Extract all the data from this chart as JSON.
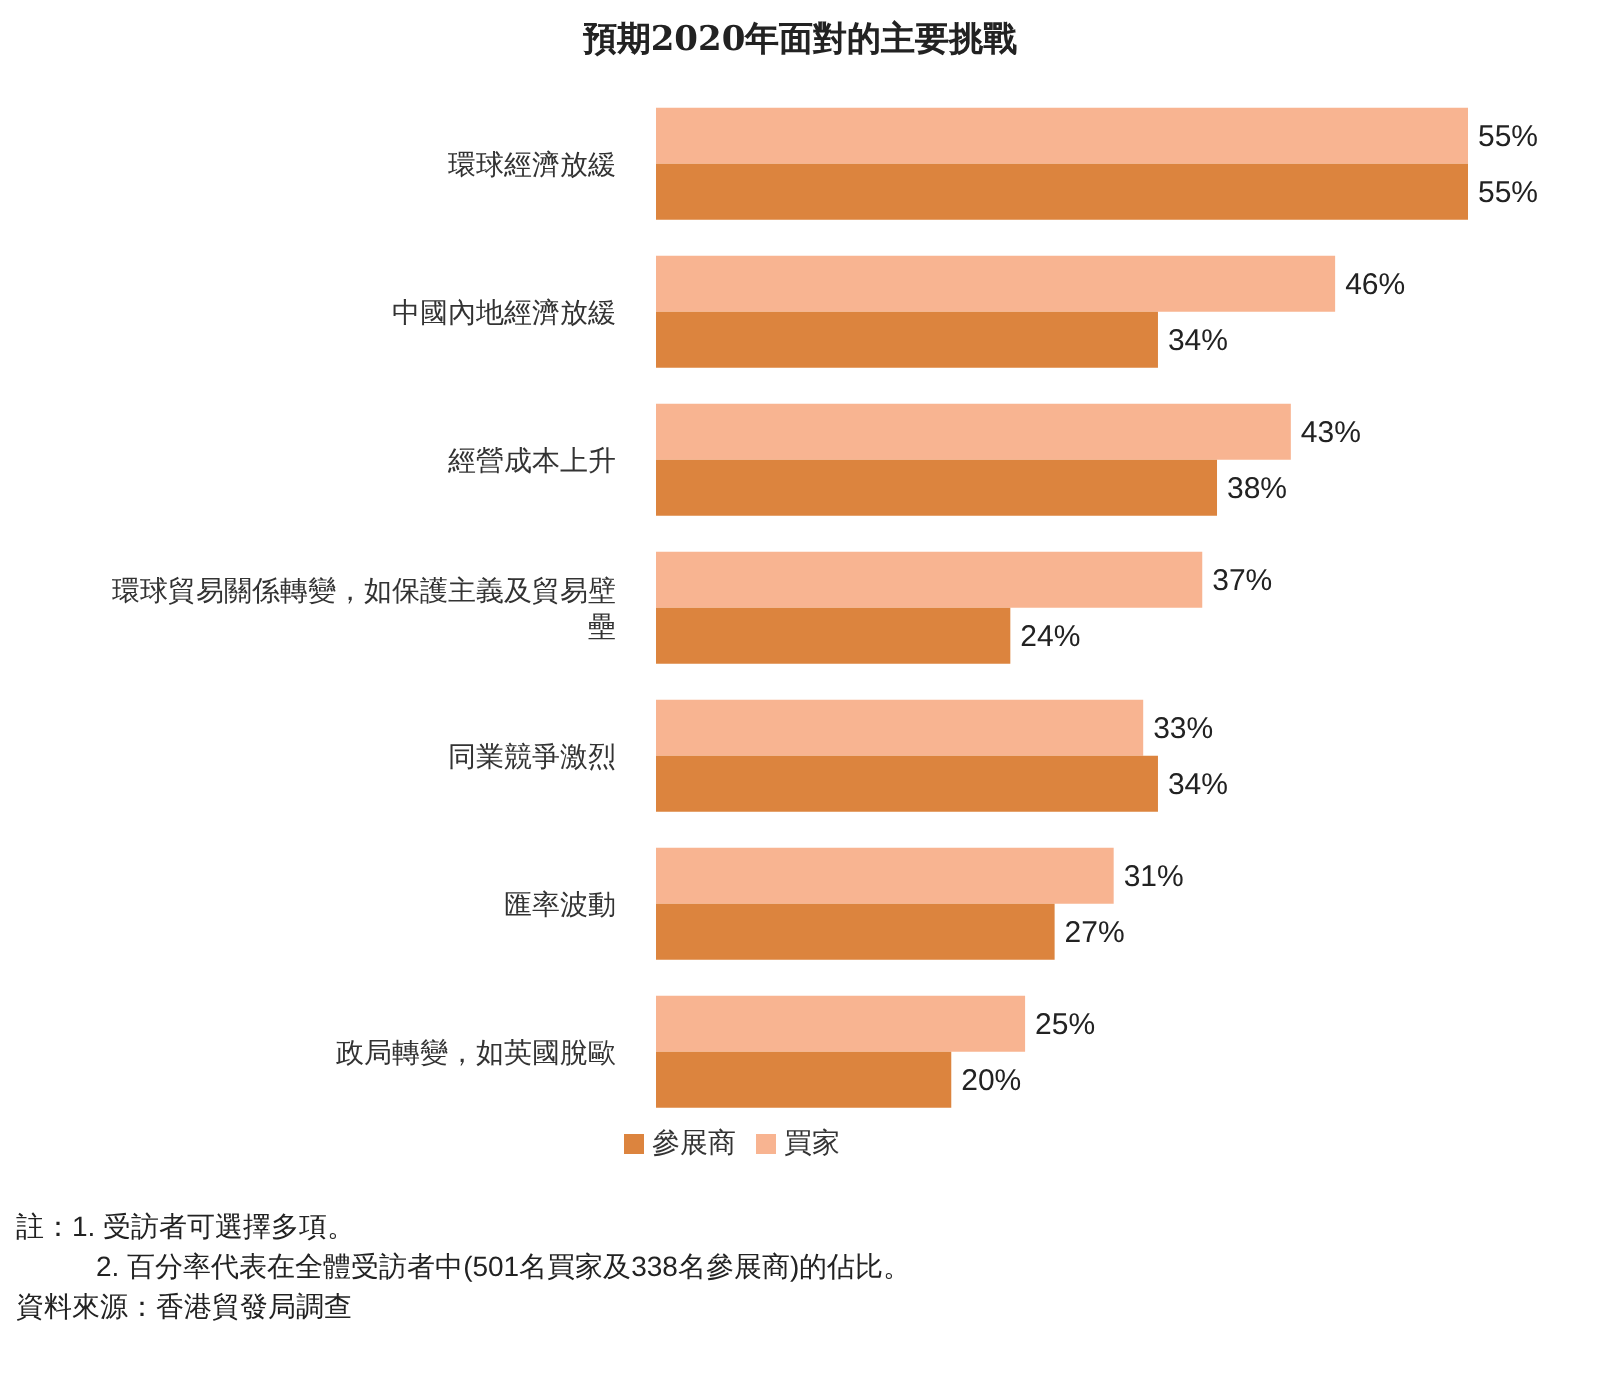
{
  "chart_data": {
    "type": "bar",
    "orientation": "horizontal",
    "title": "預期2020年面對的主要挑戰",
    "categories": [
      "環球經濟放緩",
      "中國內地經濟放緩",
      "經營成本上升",
      "環球貿易關係轉變，如保護主義及貿易壁壘",
      "同業競爭激烈",
      "匯率波動",
      "政局轉變，如英國脫歐"
    ],
    "series": [
      {
        "name": "買家",
        "color": "#f8b491",
        "values": [
          55,
          46,
          43,
          37,
          33,
          31,
          25
        ],
        "value_labels": [
          "55%",
          "46%",
          "43%",
          "37%",
          "33%",
          "31%",
          "25%"
        ]
      },
      {
        "name": "參展商",
        "color": "#dc843e",
        "values": [
          55,
          34,
          38,
          24,
          34,
          27,
          20
        ],
        "value_labels": [
          "55%",
          "34%",
          "38%",
          "24%",
          "34%",
          "27%",
          "20%"
        ]
      }
    ],
    "legend": "bottom",
    "annotations": [
      "註：1. 受訪者可選擇多項。",
      "2. 百分率代表在全體受訪者中(501名買家及338名參展商)的佔比。",
      "資料來源：香港貿發局調查"
    ]
  }
}
